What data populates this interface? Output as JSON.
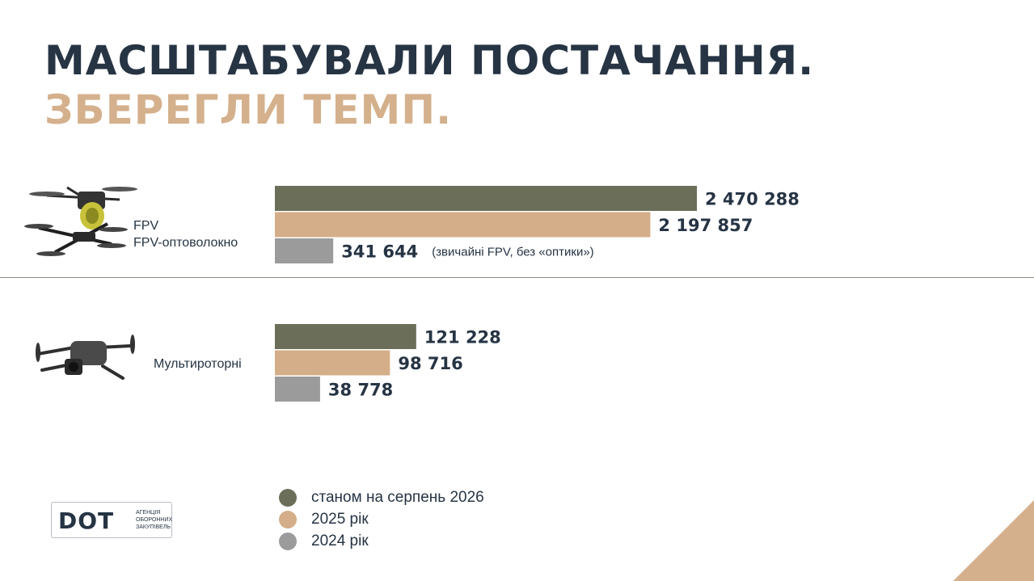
{
  "title": {
    "line1": "МАСШТАБУВАЛИ ПОСТАЧАННЯ.",
    "line2": "ЗБЕРЕГЛИ ТЕМП."
  },
  "groups": [
    {
      "label_line1": "FPV",
      "label_line2": "FPV-оптоволокно",
      "icon": "fpv-drone-icon"
    },
    {
      "label_line1": "Мультироторні",
      "icon": "multirotor-drone-icon"
    }
  ],
  "colors": {
    "2026": "#6b6e58",
    "2025": "#d4ae88",
    "2024": "#9b9b9b",
    "title_dark": "#263444",
    "title_accent": "#d4b08c"
  },
  "chart_data": {
    "type": "bar",
    "orientation": "horizontal",
    "categories": [
      "FPV / FPV-оптоволокно",
      "Мультироторні"
    ],
    "series": [
      {
        "name": "станом на серпень 2026",
        "values": [
          2470288,
          121228
        ],
        "labels": [
          "2 470 288",
          "121 228"
        ]
      },
      {
        "name": "2025 рік",
        "values": [
          2197857,
          98716
        ],
        "labels": [
          "2 197 857",
          "98 716"
        ]
      },
      {
        "name": "2024 рік",
        "values": [
          341644,
          38778
        ],
        "labels": [
          "341 644",
          "38 778"
        ]
      }
    ],
    "annotations": [
      {
        "category": "FPV / FPV-оптоволокно",
        "series": "2024 рік",
        "text": "(звичайні FPV, без «оптики»)"
      }
    ],
    "scales": [
      {
        "category": "FPV / FPV-оптоволокно",
        "max": 2470288
      },
      {
        "category": "Мультироторні",
        "max": 362000
      }
    ],
    "legend_position": "bottom"
  },
  "legend": [
    {
      "label": "станом на серпень 2026",
      "color": "#6b6e58"
    },
    {
      "label": "2025 рік",
      "color": "#d4ae88"
    },
    {
      "label": "2024 рік",
      "color": "#9b9b9b"
    }
  ],
  "logo": {
    "main": "DOT",
    "sub1": "АГЕНЦІЯ",
    "sub2": "ОБОРОННИХ",
    "sub3": "ЗАКУПІВЕЛЬ"
  }
}
